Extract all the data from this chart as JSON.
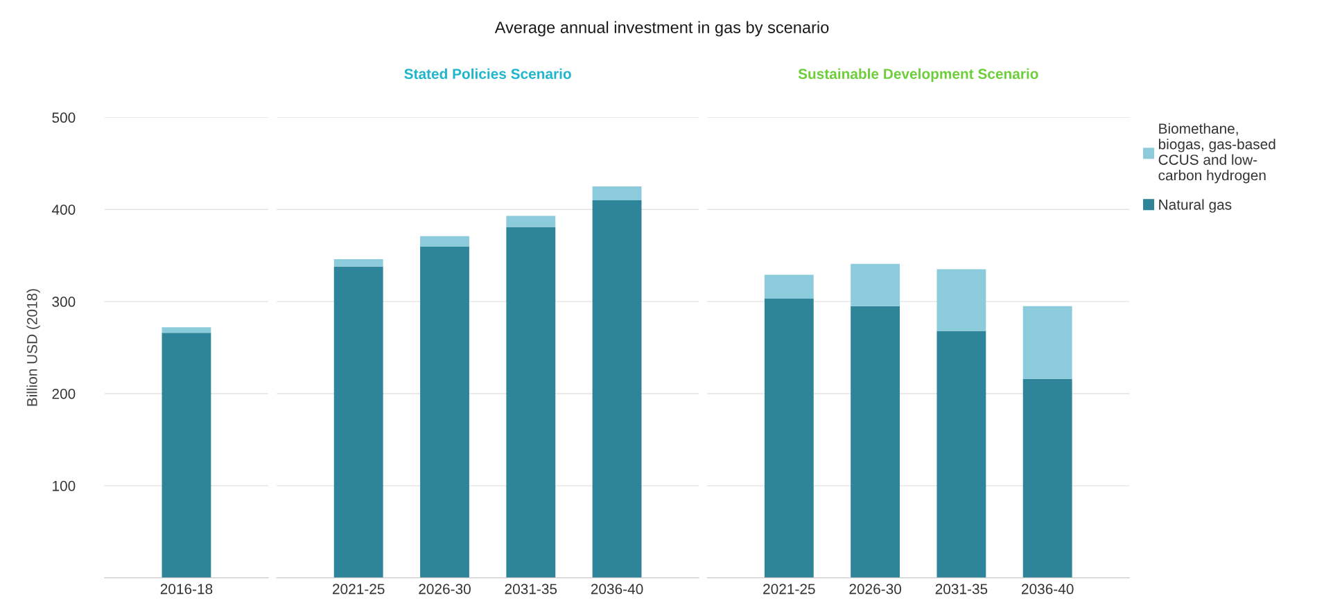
{
  "chart_data": [
    {
      "type": "bar",
      "ylabel": "Billion USD (2018)",
      "categories": [
        "2016-18"
      ],
      "stacked": true,
      "grid": "y",
      "ylim": [
        0,
        500
      ],
      "yticks": [
        100,
        200,
        300,
        400,
        500
      ],
      "series": [
        {
          "color": "#2e8599",
          "values": [
            266
          ]
        },
        {
          "color": "#8ccbdc",
          "values": [
            6
          ]
        }
      ]
    },
    {
      "type": "bar",
      "title": "Average annual investment in gas by scenario",
      "subtitle": "Stated Policies Scenario",
      "categories": [
        "2021-25",
        "2026-30",
        "2031-35",
        "2036-40"
      ],
      "stacked": true,
      "grid": "y",
      "ylim": [
        0,
        500
      ],
      "yticks": [
        100,
        200,
        300,
        400,
        500
      ],
      "tick_labels": "x",
      "series": [
        {
          "color": "#2e8599",
          "values": [
            338,
            360,
            381,
            410
          ]
        },
        {
          "color": "#8ccbdc",
          "values": [
            8,
            11,
            12,
            15
          ]
        }
      ]
    },
    {
      "type": "bar",
      "subtitle": "Sustainable Development Scenario",
      "categories": [
        "2021-25",
        "2026-30",
        "2031-35",
        "2036-40"
      ],
      "stacked": true,
      "grid": "y",
      "ylim": [
        0,
        500
      ],
      "yticks": [
        100,
        200,
        300,
        400,
        500
      ],
      "tick_labels": "x",
      "legend": "right",
      "series": [
        {
          "name": "Natural gas",
          "color": "#2e8599",
          "values": [
            303,
            295,
            268,
            216
          ]
        },
        {
          "name": "Biomethane,\nbiogas, gas-based\nCCUS and low-\ncarbon hydrogen",
          "color": "#8ccbdc",
          "values": [
            26,
            46,
            67,
            79
          ]
        }
      ]
    }
  ]
}
